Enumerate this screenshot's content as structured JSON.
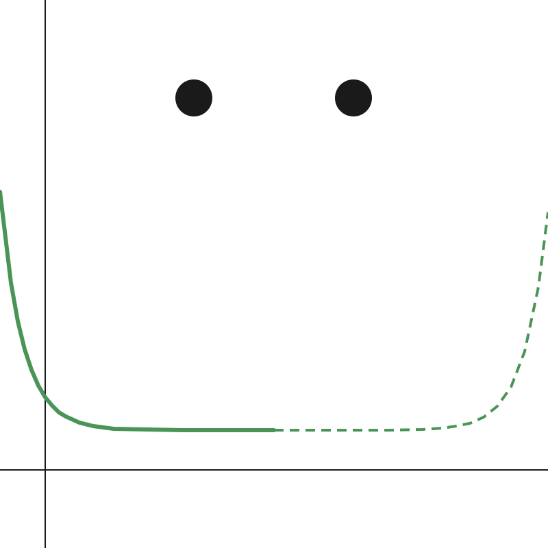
{
  "chart_data": {
    "type": "line",
    "xlim": [
      -0.66,
      7.34
    ],
    "ylim": [
      -1.14,
      6.86
    ],
    "axes": true,
    "series": [
      {
        "style": "solid",
        "color": "#4a9458",
        "x": [
          -0.66,
          -0.5,
          -0.4,
          -0.3,
          -0.2,
          -0.1,
          0,
          0.1,
          0.2,
          0.3,
          0.5,
          0.7,
          1,
          1.5,
          2,
          3.34
        ],
        "values": [
          4.06,
          2.73,
          2.17,
          1.76,
          1.46,
          1.23,
          1.06,
          0.94,
          0.84,
          0.78,
          0.69,
          0.64,
          0.6,
          0.59,
          0.58,
          0.58
        ]
      },
      {
        "style": "dashed",
        "color": "#4a9458",
        "x": [
          3.34,
          4,
          5,
          5.5,
          5.8,
          6.0,
          6.2,
          6.4,
          6.6,
          6.8,
          7.0,
          7.2,
          7.34
        ],
        "values": [
          0.58,
          0.58,
          0.58,
          0.59,
          0.61,
          0.64,
          0.68,
          0.77,
          0.93,
          1.21,
          1.73,
          2.67,
          3.76
        ]
      },
      {
        "style": "points",
        "color": "#1a1a1a",
        "x": [
          2.17,
          4.5
        ],
        "values": [
          5.43,
          5.43
        ]
      }
    ]
  }
}
